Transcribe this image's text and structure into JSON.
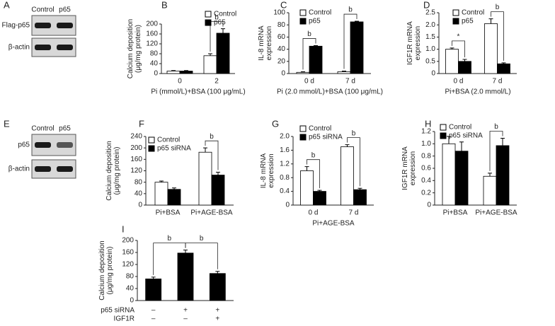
{
  "blots": [
    {
      "panel": "A",
      "columns": [
        "Control",
        "p65"
      ],
      "rows": [
        "Flag-p65",
        "β-actin"
      ]
    },
    {
      "panel": "E",
      "columns": [
        "Control",
        "p65"
      ],
      "rows": [
        "p65",
        "β-actin"
      ]
    }
  ],
  "chart_data": [
    {
      "type": "bar",
      "panel": "B",
      "ylabel": [
        "Calcium deposition",
        "(μg/mg protein)"
      ],
      "xlabel": "Pi (mmol/L)+BSA (100 μg/mL)",
      "categories": [
        "0",
        "2"
      ],
      "ylim": [
        0,
        200
      ],
      "yticks": [
        0,
        40,
        80,
        120,
        160,
        200
      ],
      "series": [
        {
          "name": "Control",
          "color": "#ffffff",
          "values": [
            10,
            72
          ],
          "errors": [
            2,
            8
          ]
        },
        {
          "name": "p65",
          "color": "#000000",
          "values": [
            10,
            163
          ],
          "errors": [
            2,
            18
          ]
        }
      ],
      "annotations": [
        null,
        "b"
      ]
    },
    {
      "type": "bar",
      "panel": "C",
      "ylabel": [
        "IL-8 mRNA",
        "expression"
      ],
      "xlabel": "Pi (2.0 mmol/L)+BSA (100 μg/mL)",
      "categories": [
        "0 d",
        "7 d"
      ],
      "ylim": [
        0,
        100
      ],
      "yticks": [
        0,
        20,
        40,
        60,
        80,
        100
      ],
      "series": [
        {
          "name": "Control",
          "color": "#ffffff",
          "values": [
            2,
            3
          ],
          "errors": [
            1,
            1
          ]
        },
        {
          "name": "p65",
          "color": "#000000",
          "values": [
            45,
            85
          ],
          "errors": [
            1,
            1
          ]
        }
      ],
      "annotations": [
        "b",
        "b"
      ]
    },
    {
      "type": "bar",
      "panel": "D",
      "ylabel": [
        "IGF1R mRNA",
        "expression"
      ],
      "xlabel": "Pi+BSA (2.0 mmol/L)",
      "categories": [
        "0 d",
        "7 d"
      ],
      "ylim": [
        0,
        2.5
      ],
      "yticks": [
        0,
        0.5,
        {
          "value": 1,
          "label": "1.0"
        },
        1.5,
        {
          "value": 2,
          "label": "2.0"
        },
        2.5
      ],
      "series": [
        {
          "name": "Control",
          "color": "#ffffff",
          "values": [
            1.0,
            2.05
          ],
          "errors": [
            0.05,
            0.2
          ]
        },
        {
          "name": "p65",
          "color": "#000000",
          "values": [
            0.5,
            0.4
          ],
          "errors": [
            0.08,
            0.04
          ]
        }
      ],
      "annotations": [
        "*",
        "b"
      ]
    },
    {
      "type": "bar",
      "panel": "F",
      "ylabel": [
        "Calcium deposition",
        "(μg/mg protein)"
      ],
      "categories": [
        "Pi+BSA",
        "Pi+AGE-BSA"
      ],
      "ylim": [
        0,
        240
      ],
      "yticks": [
        0,
        40,
        80,
        120,
        160,
        200,
        240
      ],
      "series": [
        {
          "name": "Control",
          "color": "#ffffff",
          "values": [
            80,
            185
          ],
          "errors": [
            4,
            15
          ]
        },
        {
          "name": "p65 siRNA",
          "color": "#000000",
          "values": [
            55,
            105
          ],
          "errors": [
            5,
            10
          ]
        }
      ],
      "annotations": [
        null,
        "b"
      ]
    },
    {
      "type": "bar",
      "panel": "G",
      "ylabel": [
        "IL-8 mRNA",
        "expression"
      ],
      "xlabel": "Pi+AGE-BSA",
      "categories": [
        "0 d",
        "7 d"
      ],
      "ylim": [
        0,
        2.0
      ],
      "yticks": [
        0,
        0.4,
        0.8,
        1.2,
        1.6,
        {
          "value": 2,
          "label": "2.0"
        }
      ],
      "series": [
        {
          "name": "Control",
          "color": "#ffffff",
          "values": [
            1.0,
            1.7
          ],
          "errors": [
            0.12,
            0.06
          ]
        },
        {
          "name": "p65 siRNA",
          "color": "#000000",
          "values": [
            0.4,
            0.45
          ],
          "errors": [
            0.03,
            0.04
          ]
        }
      ],
      "annotations": [
        "b",
        "b"
      ]
    },
    {
      "type": "bar",
      "panel": "H",
      "ylabel": [
        "IGF1R mRNA",
        "expression"
      ],
      "categories": [
        "Pi+BSA",
        "Pi+AGE-BSA"
      ],
      "ylim": [
        0,
        1.2
      ],
      "yticks": [
        0,
        0.2,
        0.4,
        0.6,
        0.8,
        {
          "value": 1,
          "label": "1.0"
        },
        1.2
      ],
      "series": [
        {
          "name": "Control",
          "color": "#ffffff",
          "values": [
            1.0,
            0.47
          ],
          "errors": [
            0.12,
            0.05
          ]
        },
        {
          "name": "p65 siRNA",
          "color": "#000000",
          "values": [
            0.88,
            0.97
          ],
          "errors": [
            0.15,
            0.12
          ]
        }
      ],
      "annotations": [
        null,
        "b"
      ]
    },
    {
      "type": "bar",
      "panel": "I",
      "ylabel": [
        "Calcium deposition",
        "(μg/mg protein)"
      ],
      "categories": [
        null,
        null,
        null
      ],
      "ylim": [
        0,
        200
      ],
      "yticks": [
        0,
        40,
        80,
        120,
        160,
        200
      ],
      "values": [
        72,
        158,
        90
      ],
      "errors": [
        6,
        10,
        7
      ],
      "color": "#000000",
      "factor_rows": [
        {
          "name": "p65 siRNA",
          "signs": [
            "–",
            "+",
            "+"
          ]
        },
        {
          "name": "IGF1R",
          "signs": [
            "–",
            "–",
            "+"
          ]
        }
      ],
      "annotations": [
        "b",
        "b"
      ]
    }
  ]
}
